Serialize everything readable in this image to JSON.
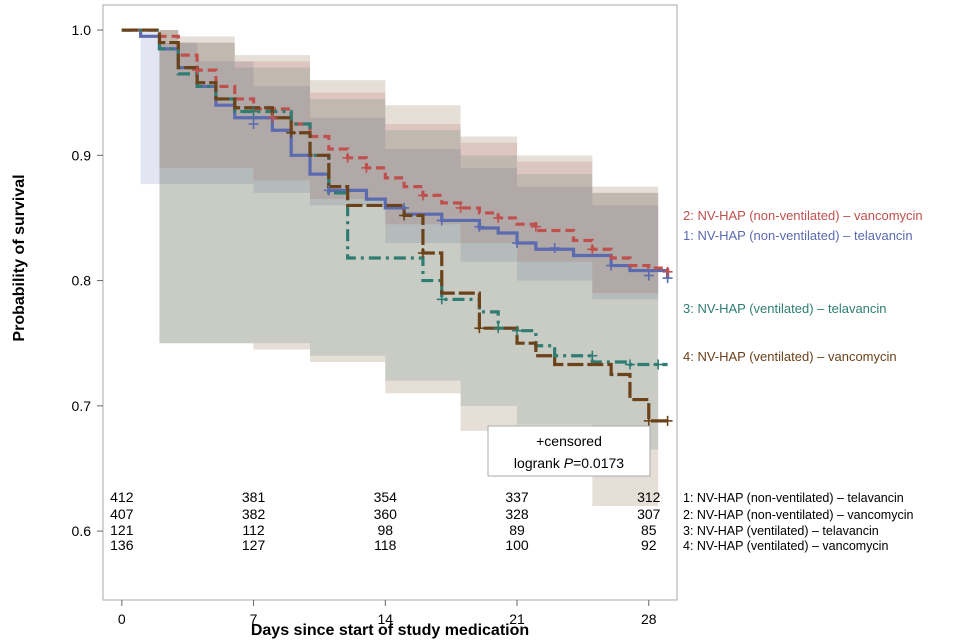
{
  "chart_data": {
    "type": "line",
    "subtype": "kaplan-meier",
    "xlabel": "Days since start of study medication",
    "ylabel": "Probability of survival",
    "xlim": [
      -1,
      29.5
    ],
    "ylim": [
      0.545,
      1.02
    ],
    "xticks": [
      0,
      7,
      14,
      21,
      28
    ],
    "yticks": [
      0.6,
      0.7,
      0.8,
      0.9,
      1.0
    ],
    "ytick_labels": [
      "0.6",
      "0.7",
      "0.8",
      "0.9",
      "1.0"
    ],
    "annotation": {
      "line1": "+censored",
      "line2_prefix": "logrank ",
      "line2_italic": "P",
      "line2_suffix": "=0.0173"
    },
    "series": [
      {
        "name": "1: NV-HAP (non-ventilated) – telavancin",
        "color": "#5b6bb0",
        "dash": "",
        "steps": [
          [
            0,
            1.0
          ],
          [
            1,
            0.995
          ],
          [
            2,
            0.985
          ],
          [
            3,
            0.97
          ],
          [
            4,
            0.955
          ],
          [
            5,
            0.94
          ],
          [
            6,
            0.93
          ],
          [
            8,
            0.92
          ],
          [
            9,
            0.9
          ],
          [
            10,
            0.885
          ],
          [
            11,
            0.872
          ],
          [
            13,
            0.865
          ],
          [
            14,
            0.858
          ],
          [
            15,
            0.853
          ],
          [
            17,
            0.848
          ],
          [
            19,
            0.842
          ],
          [
            20,
            0.838
          ],
          [
            21,
            0.83
          ],
          [
            22,
            0.825
          ],
          [
            24,
            0.82
          ],
          [
            26,
            0.812
          ],
          [
            27,
            0.808
          ],
          [
            29,
            0.802
          ]
        ],
        "censored": [
          [
            7,
            0.925
          ],
          [
            11,
            0.872
          ],
          [
            15,
            0.858
          ],
          [
            17,
            0.848
          ],
          [
            19,
            0.843
          ],
          [
            21,
            0.83
          ],
          [
            23,
            0.826
          ],
          [
            26,
            0.812
          ],
          [
            28,
            0.804
          ],
          [
            29,
            0.802
          ]
        ],
        "band_upper": [
          [
            0,
            1.0
          ],
          [
            2,
            0.99
          ],
          [
            4,
            0.975
          ],
          [
            7,
            0.955
          ],
          [
            10,
            0.93
          ],
          [
            14,
            0.905
          ],
          [
            18,
            0.89
          ],
          [
            21,
            0.875
          ],
          [
            25,
            0.86
          ],
          [
            28.5,
            0.855
          ]
        ],
        "band_lower": [
          [
            0,
            1.0
          ],
          [
            1,
            0.877
          ],
          [
            7,
            0.87
          ],
          [
            10,
            0.86
          ],
          [
            14,
            0.83
          ],
          [
            18,
            0.815
          ],
          [
            21,
            0.8
          ],
          [
            25,
            0.785
          ],
          [
            28.5,
            0.77
          ]
        ]
      },
      {
        "name": "2: NV-HAP (non-ventilated) – vancomycin",
        "color": "#c0504d",
        "dash": "9 5",
        "steps": [
          [
            0,
            1.0
          ],
          [
            2,
            0.995
          ],
          [
            3,
            0.98
          ],
          [
            4,
            0.968
          ],
          [
            5,
            0.955
          ],
          [
            6,
            0.945
          ],
          [
            7,
            0.937
          ],
          [
            9,
            0.925
          ],
          [
            10,
            0.915
          ],
          [
            11,
            0.905
          ],
          [
            12,
            0.898
          ],
          [
            13,
            0.89
          ],
          [
            14,
            0.882
          ],
          [
            15,
            0.875
          ],
          [
            16,
            0.868
          ],
          [
            17,
            0.862
          ],
          [
            18,
            0.858
          ],
          [
            19,
            0.854
          ],
          [
            20,
            0.85
          ],
          [
            21,
            0.845
          ],
          [
            22,
            0.84
          ],
          [
            24,
            0.832
          ],
          [
            25,
            0.825
          ],
          [
            26,
            0.818
          ],
          [
            27,
            0.812
          ],
          [
            28,
            0.81
          ],
          [
            29,
            0.807
          ]
        ],
        "censored": [
          [
            4,
            0.968
          ],
          [
            8,
            0.93
          ],
          [
            12,
            0.898
          ],
          [
            13,
            0.89
          ],
          [
            16,
            0.868
          ],
          [
            18,
            0.858
          ],
          [
            20,
            0.85
          ],
          [
            22,
            0.843
          ],
          [
            25,
            0.825
          ],
          [
            29,
            0.807
          ]
        ],
        "band_upper": [
          [
            0,
            1.0
          ],
          [
            3,
            0.99
          ],
          [
            6,
            0.975
          ],
          [
            10,
            0.95
          ],
          [
            14,
            0.925
          ],
          [
            18,
            0.91
          ],
          [
            21,
            0.895
          ],
          [
            25,
            0.87
          ],
          [
            28.5,
            0.857
          ]
        ],
        "band_lower": [
          [
            0,
            1.0
          ],
          [
            2,
            0.89
          ],
          [
            7,
            0.88
          ],
          [
            10,
            0.865
          ],
          [
            14,
            0.845
          ],
          [
            18,
            0.83
          ],
          [
            21,
            0.815
          ],
          [
            25,
            0.79
          ],
          [
            28.5,
            0.76
          ]
        ]
      },
      {
        "name": "3: NV-HAP (ventilated) – telavancin",
        "color": "#2e7d72",
        "dash": "12 5 3 5",
        "steps": [
          [
            0,
            1.0
          ],
          [
            2,
            0.985
          ],
          [
            3,
            0.965
          ],
          [
            4,
            0.955
          ],
          [
            5,
            0.945
          ],
          [
            6,
            0.935
          ],
          [
            9,
            0.925
          ],
          [
            10,
            0.9
          ],
          [
            11,
            0.87
          ],
          [
            12,
            0.818
          ],
          [
            16,
            0.8
          ],
          [
            17,
            0.785
          ],
          [
            18,
            0.785
          ],
          [
            19,
            0.775
          ],
          [
            20,
            0.762
          ],
          [
            21,
            0.76
          ],
          [
            22,
            0.748
          ],
          [
            23,
            0.74
          ],
          [
            25,
            0.735
          ],
          [
            27,
            0.733
          ],
          [
            29,
            0.733
          ]
        ],
        "censored": [
          [
            7,
            0.935
          ],
          [
            17,
            0.785
          ],
          [
            20,
            0.762
          ],
          [
            21,
            0.76
          ],
          [
            25,
            0.74
          ],
          [
            27,
            0.733
          ],
          [
            28.5,
            0.733
          ]
        ],
        "band_upper": [
          [
            0,
            1.0
          ],
          [
            3,
            0.99
          ],
          [
            6,
            0.97
          ],
          [
            10,
            0.945
          ],
          [
            14,
            0.92
          ],
          [
            18,
            0.9
          ],
          [
            21,
            0.885
          ],
          [
            25,
            0.87
          ],
          [
            28.5,
            0.86
          ]
        ],
        "band_lower": [
          [
            0,
            1.0
          ],
          [
            2,
            0.75
          ],
          [
            7,
            0.75
          ],
          [
            10,
            0.74
          ],
          [
            14,
            0.72
          ],
          [
            18,
            0.7
          ],
          [
            21,
            0.685
          ],
          [
            25,
            0.665
          ],
          [
            28.5,
            0.655
          ]
        ]
      },
      {
        "name": "4: NV-HAP (ventilated) – vancomycin",
        "color": "#6b4219",
        "dash": "16 4",
        "steps": [
          [
            0,
            1.0
          ],
          [
            2,
            0.99
          ],
          [
            3,
            0.97
          ],
          [
            4,
            0.958
          ],
          [
            5,
            0.945
          ],
          [
            6,
            0.938
          ],
          [
            8,
            0.93
          ],
          [
            9,
            0.918
          ],
          [
            10,
            0.9
          ],
          [
            11,
            0.875
          ],
          [
            12,
            0.86
          ],
          [
            15,
            0.852
          ],
          [
            16,
            0.822
          ],
          [
            17,
            0.79
          ],
          [
            19,
            0.762
          ],
          [
            21,
            0.75
          ],
          [
            22,
            0.74
          ],
          [
            23,
            0.733
          ],
          [
            26,
            0.725
          ],
          [
            27,
            0.705
          ],
          [
            28,
            0.688
          ],
          [
            29,
            0.688
          ]
        ],
        "censored": [
          [
            9,
            0.918
          ],
          [
            15,
            0.852
          ],
          [
            16,
            0.822
          ],
          [
            19,
            0.762
          ],
          [
            28,
            0.688
          ],
          [
            29,
            0.688
          ]
        ],
        "band_upper": [
          [
            0,
            1.0
          ],
          [
            3,
            0.995
          ],
          [
            6,
            0.98
          ],
          [
            10,
            0.96
          ],
          [
            14,
            0.94
          ],
          [
            18,
            0.915
          ],
          [
            21,
            0.9
          ],
          [
            25,
            0.875
          ],
          [
            28.5,
            0.865
          ]
        ],
        "band_lower": [
          [
            0,
            1.0
          ],
          [
            2,
            0.75
          ],
          [
            7,
            0.745
          ],
          [
            10,
            0.735
          ],
          [
            14,
            0.71
          ],
          [
            18,
            0.68
          ],
          [
            21,
            0.655
          ],
          [
            25,
            0.62
          ],
          [
            28.5,
            0.595
          ]
        ]
      }
    ],
    "at_risk": {
      "x": [
        0,
        7,
        14,
        21,
        28
      ],
      "rows": [
        {
          "label": "1: NV-HAP (non-ventilated) – telavancin",
          "values": [
            "412",
            "381",
            "354",
            "337",
            "312"
          ]
        },
        {
          "label": "2: NV-HAP (non-ventilated) – vancomycin",
          "values": [
            "407",
            "382",
            "360",
            "328",
            "307"
          ]
        },
        {
          "label": "3: NV-HAP (ventilated) – telavancin",
          "values": [
            "121",
            "112",
            "98",
            "89",
            "85"
          ]
        },
        {
          "label": "4: NV-HAP (ventilated) – vancomycin",
          "values": [
            "136",
            "127",
            "118",
            "100",
            "92"
          ]
        }
      ]
    },
    "legend": {
      "placement": "right",
      "order": [
        1,
        0,
        2,
        3
      ]
    }
  }
}
